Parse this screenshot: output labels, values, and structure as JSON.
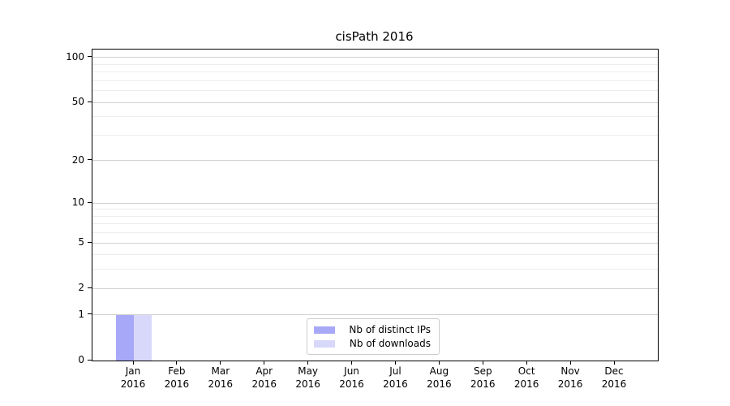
{
  "title": "cisPath 2016",
  "chart_data": {
    "type": "bar",
    "title": "cisPath 2016",
    "categories": [
      "Jan\n2016",
      "Feb\n2016",
      "Mar\n2016",
      "Apr\n2016",
      "May\n2016",
      "Jun\n2016",
      "Jul\n2016",
      "Aug\n2016",
      "Sep\n2016",
      "Oct\n2016",
      "Nov\n2016",
      "Dec\n2016"
    ],
    "series": [
      {
        "name": "Nb of distinct IPs",
        "color": "#a8a8f8",
        "values": [
          1,
          0,
          0,
          0,
          0,
          0,
          0,
          0,
          0,
          0,
          0,
          0
        ]
      },
      {
        "name": "Nb of downloads",
        "color": "#d8d8fa",
        "values": [
          1,
          0,
          0,
          0,
          0,
          0,
          0,
          0,
          0,
          0,
          0,
          0
        ]
      }
    ],
    "xlabel": "",
    "ylabel": "",
    "y_scale": "log1p",
    "ylim": [
      0,
      113
    ],
    "y_ticks_major": [
      0,
      1,
      2,
      5,
      10,
      20,
      50,
      100
    ],
    "y_ticks_minor": [
      3,
      4,
      6,
      7,
      8,
      9,
      30,
      40,
      60,
      70,
      80,
      90
    ],
    "grid": "horizontal",
    "legend_position": "bottom-center"
  }
}
